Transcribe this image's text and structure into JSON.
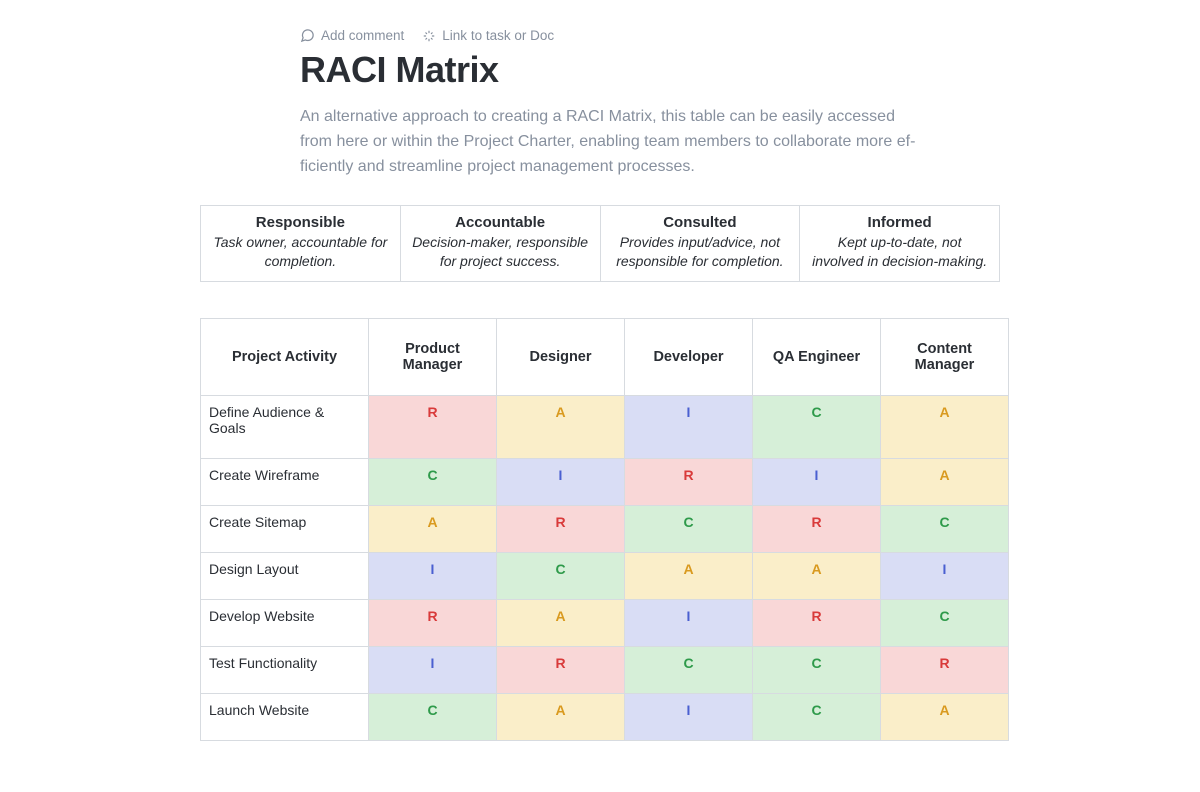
{
  "toolbar": {
    "add_comment": "Add comment",
    "link_task": "Link to task or Doc"
  },
  "title": "RACI Matrix",
  "description": "An alternative approach to creating a RACI Matrix, this table can be easily accessed from here or within the Project Charter, enabling team members to collaborate more ef­ficiently and streamline project management processes.",
  "legend": {
    "columns": [
      {
        "title": "Responsible",
        "desc": "Task owner, accountable for completion."
      },
      {
        "title": "Accountable",
        "desc": "Decision-maker, responsible for project success."
      },
      {
        "title": "Consulted",
        "desc": "Provides input/advice, not responsible for completion."
      },
      {
        "title": "Informed",
        "desc": "Kept up-to-date, not involved in decision-making."
      }
    ]
  },
  "raci": {
    "type": "table",
    "role_key_colors": {
      "R": {
        "bg": "#f9d7d7",
        "fg": "#d93a3a"
      },
      "A": {
        "bg": "#faeec9",
        "fg": "#d99a1f"
      },
      "C": {
        "bg": "#d6efd8",
        "fg": "#2e9a4a"
      },
      "I": {
        "bg": "#d9ddf5",
        "fg": "#4a5fd1"
      }
    },
    "columns": [
      "Project Activity",
      "Product Manager",
      "Designer",
      "Developer",
      "QA Engineer",
      "Content Manager"
    ],
    "rows": [
      {
        "activity": "Define Audience & Goals",
        "cells": [
          "R",
          "A",
          "I",
          "C",
          "A"
        ]
      },
      {
        "activity": "Create Wireframe",
        "cells": [
          "C",
          "I",
          "R",
          "I",
          "A"
        ]
      },
      {
        "activity": "Create Sitemap",
        "cells": [
          "A",
          "R",
          "C",
          "R",
          "C"
        ]
      },
      {
        "activity": "Design Layout",
        "cells": [
          "I",
          "C",
          "A",
          "A",
          "I"
        ]
      },
      {
        "activity": "Develop Website",
        "cells": [
          "R",
          "A",
          "I",
          "R",
          "C"
        ]
      },
      {
        "activity": "Test Functionality",
        "cells": [
          "I",
          "R",
          "C",
          "C",
          "R"
        ]
      },
      {
        "activity": "Launch Website",
        "cells": [
          "C",
          "A",
          "I",
          "C",
          "A"
        ]
      }
    ]
  },
  "style": {
    "border_color": "#d7dbe0",
    "header_font_size": 14.5,
    "cell_font_size": 14,
    "title_font_size": 36,
    "desc_color": "#87909e",
    "text_color": "#2a2e34",
    "background": "#ffffff"
  }
}
